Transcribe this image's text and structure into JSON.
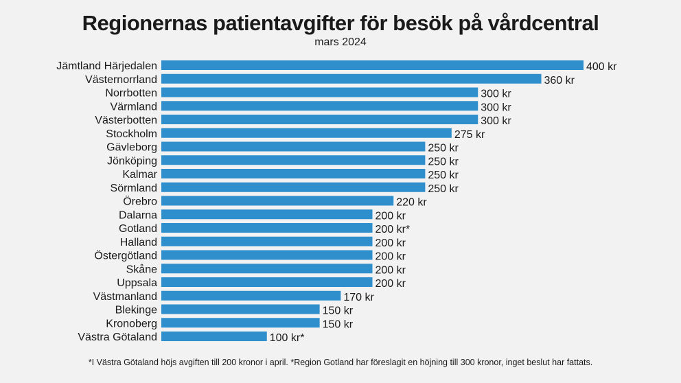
{
  "chart_data": {
    "type": "bar",
    "orientation": "horizontal",
    "title": "Regionernas patientavgifter för besök på vårdcentral",
    "subtitle": "mars 2024",
    "unit": "kr",
    "bar_color": "#2e8fcc",
    "categories": [
      "Jämtland Härjedalen",
      "Västernorrland",
      "Norrbotten",
      "Värmland",
      "Västerbotten",
      "Stockholm",
      "Gävleborg",
      "Jönköping",
      "Kalmar",
      "Sörmland",
      "Örebro",
      "Dalarna",
      "Gotland",
      "Halland",
      "Östergötland",
      "Skåne",
      "Uppsala",
      "Västmanland",
      "Blekinge",
      "Kronoberg",
      "Västra Götaland"
    ],
    "values": [
      400,
      360,
      300,
      300,
      300,
      275,
      250,
      250,
      250,
      250,
      220,
      200,
      200,
      200,
      200,
      200,
      200,
      170,
      150,
      150,
      100
    ],
    "value_labels": [
      "400 kr",
      "360 kr",
      "300 kr",
      "300 kr",
      "300 kr",
      "275 kr",
      "250 kr",
      "250 kr",
      "250 kr",
      "250 kr",
      "220 kr",
      "200 kr",
      "200 kr*",
      "200 kr",
      "200 kr",
      "200 kr",
      "200 kr",
      "170 kr",
      "150 kr",
      "150 kr",
      "100 kr*"
    ],
    "xlim": [
      0,
      400
    ],
    "grid": false,
    "legend": "none"
  },
  "footnote": "*I Västra Götaland höjs avgiften till 200 kronor i april. *Region Gotland har föreslagit en höjning till 300 kronor, inget beslut har fattats."
}
